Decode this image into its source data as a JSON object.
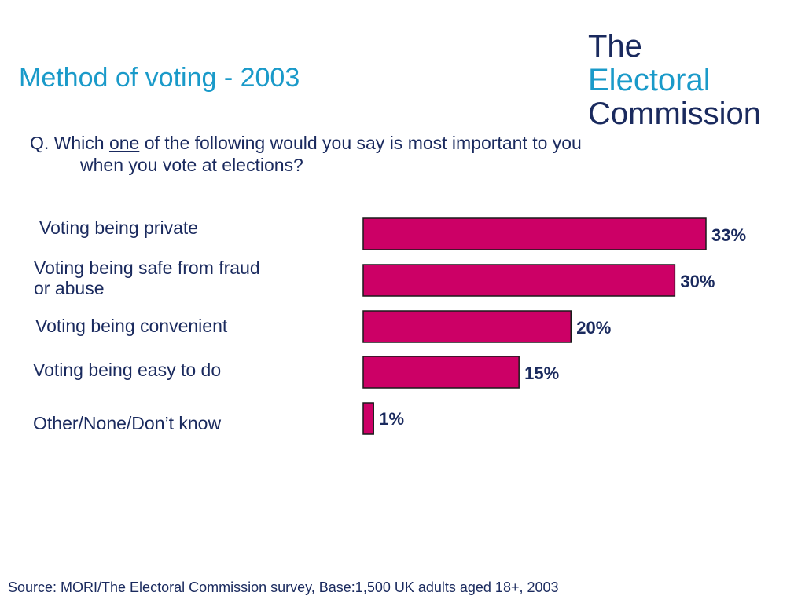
{
  "title": "Method of voting - 2003",
  "logo": {
    "line1": "The",
    "line2": "Electoral",
    "line3": "Commission"
  },
  "question": {
    "prefix": "Q. Which ",
    "emphasis": "one",
    "rest": " of the following would you say is most important to you",
    "line2": "when you vote at elections?"
  },
  "chart_data": {
    "type": "bar",
    "orientation": "horizontal",
    "categories": [
      [
        "Voting being private"
      ],
      [
        "Voting being safe from fraud",
        "or abuse"
      ],
      [
        "Voting being convenient"
      ],
      [
        "Voting being easy to do"
      ],
      [
        "Other/None/Don’t know"
      ]
    ],
    "values": [
      33,
      30,
      20,
      15,
      1
    ],
    "data_labels": [
      "33%",
      "30%",
      "20%",
      "15%",
      "1%"
    ],
    "bar_color": "#cc0066",
    "grid": false,
    "legend": "none"
  },
  "source": "Source: MORI/The Electoral Commission survey, Base:1,500 UK adults aged 18+, 2003"
}
